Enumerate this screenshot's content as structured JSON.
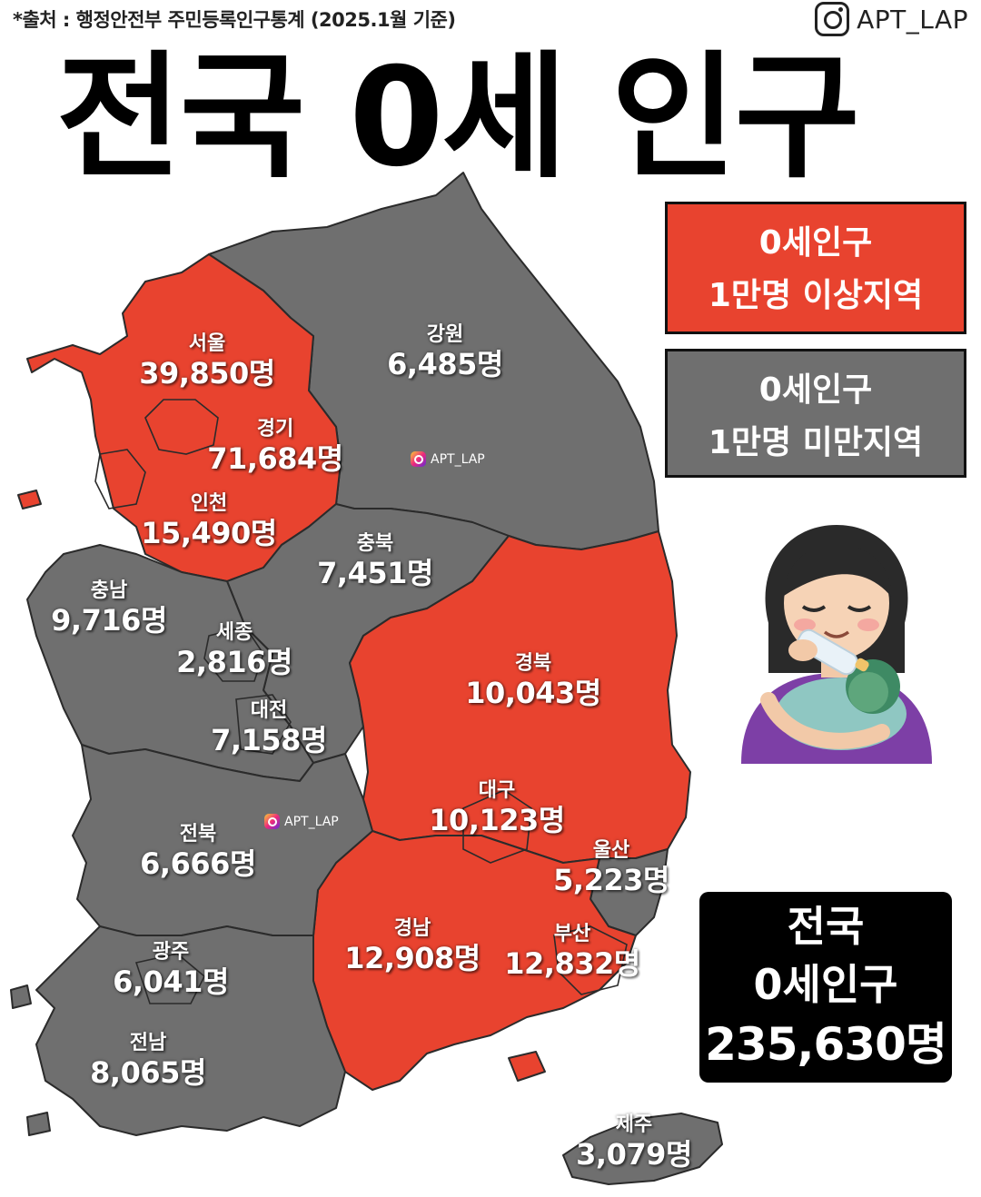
{
  "header": {
    "source": "*출처 : 행정안전부 주민등록인구통계 (2025.1월 기준)",
    "brand": "APT_LAP"
  },
  "title": "전국 0세 인구",
  "legend": {
    "over": {
      "line1": "0세인구",
      "line2": "1만명 이상지역",
      "color": "#e8432f"
    },
    "under": {
      "line1": "0세인구",
      "line2": "1만명 미만지역",
      "color": "#6f6f6f"
    }
  },
  "regions": {
    "seoul": {
      "name": "서울",
      "value": "39,850명"
    },
    "gyeonggi": {
      "name": "경기",
      "value": "71,684명"
    },
    "incheon": {
      "name": "인천",
      "value": "15,490명"
    },
    "gangwon": {
      "name": "강원",
      "value": "6,485명"
    },
    "chungbuk": {
      "name": "충북",
      "value": "7,451명"
    },
    "chungnam": {
      "name": "충남",
      "value": "9,716명"
    },
    "sejong": {
      "name": "세종",
      "value": "2,816명"
    },
    "daejeon": {
      "name": "대전",
      "value": "7,158명"
    },
    "gyeongbuk": {
      "name": "경북",
      "value": "10,043명"
    },
    "daegu": {
      "name": "대구",
      "value": "10,123명"
    },
    "ulsan": {
      "name": "울산",
      "value": "5,223명"
    },
    "jeonbuk": {
      "name": "전북",
      "value": "6,666명"
    },
    "gyeongnam": {
      "name": "경남",
      "value": "12,908명"
    },
    "busan": {
      "name": "부산",
      "value": "12,832명"
    },
    "gwangju": {
      "name": "광주",
      "value": "6,041명"
    },
    "jeonnam": {
      "name": "전남",
      "value": "8,065명"
    },
    "jeju": {
      "name": "제주",
      "value": "3,079명"
    }
  },
  "watermark": "APT_LAP",
  "total": {
    "line1": "전국",
    "line2": "0세인구",
    "line3": "235,630명"
  },
  "illustration": "breastfeeding-mother-emoji"
}
